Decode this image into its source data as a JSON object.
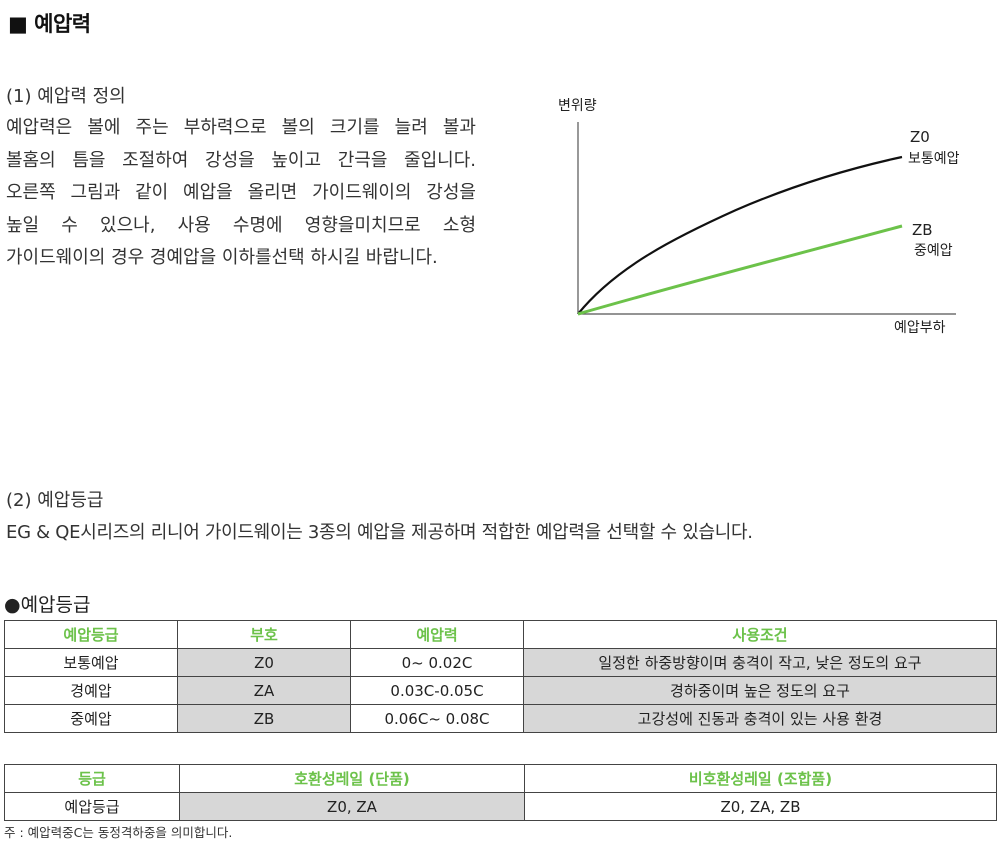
{
  "title": "■ 예압력",
  "section1": {
    "heading": "(1) 예압력 정의",
    "lines": [
      "예압력은 볼에 주는 부하력으로 볼의 크기를 늘려 볼과",
      "볼홈의 틈을 조절하여 강성을 높이고 간극을 줄입니다.",
      "오른쪽 그림과 같이 예압을 올리면 가이드웨이의 강성을",
      "높일 수 있으나, 사용 수명에 영향을미치므로 소형",
      "가이드웨이의 경우 경예압을 이하를선택 하시길 바랍니다."
    ]
  },
  "chart_data": {
    "type": "line",
    "ylabel": "변위량",
    "xlabel": "예압부하",
    "series": [
      {
        "name": "Z0",
        "sublabel": "보통예압",
        "color": "#111111",
        "shape": "concave"
      },
      {
        "name": "ZB",
        "sublabel": "중예압",
        "color": "#6cc24a",
        "shape": "near-linear"
      }
    ],
    "grid": false
  },
  "section2": {
    "heading": "(2) 예압등급",
    "body": "EG & QE시리즈의 리니어 가이드웨이는 3종의 예압을 제공하며 적합한 예압력을 선택할 수 있습니다."
  },
  "grade_heading": "●예압등급",
  "table1": {
    "headers": [
      "예압등급",
      "부호",
      "예압력",
      "사용조건"
    ],
    "rows": [
      [
        "보통예압",
        "Z0",
        "0~ 0.02C",
        "일정한 하중방향이며 충격이 작고, 낮은 정도의 요구"
      ],
      [
        "경예압",
        "ZA",
        "0.03C-0.05C",
        "경하중이며 높은 정도의 요구"
      ],
      [
        "중예압",
        "ZB",
        "0.06C~ 0.08C",
        "고강성에 진동과 충격이 있는 사용 환경"
      ]
    ]
  },
  "table2": {
    "headers": [
      "등급",
      "호환성레일 (단품)",
      "비호환성레일 (조합품)"
    ],
    "rows": [
      [
        "예압등급",
        "Z0, ZA",
        "Z0, ZA, ZB"
      ]
    ]
  },
  "footnote": "주 : 예압력중C는 동정격하중을 의미합니다.",
  "colors": {
    "accent_green": "#6cc24a",
    "cell_shade": "#d7d7d7",
    "curve_dark": "#111111"
  }
}
